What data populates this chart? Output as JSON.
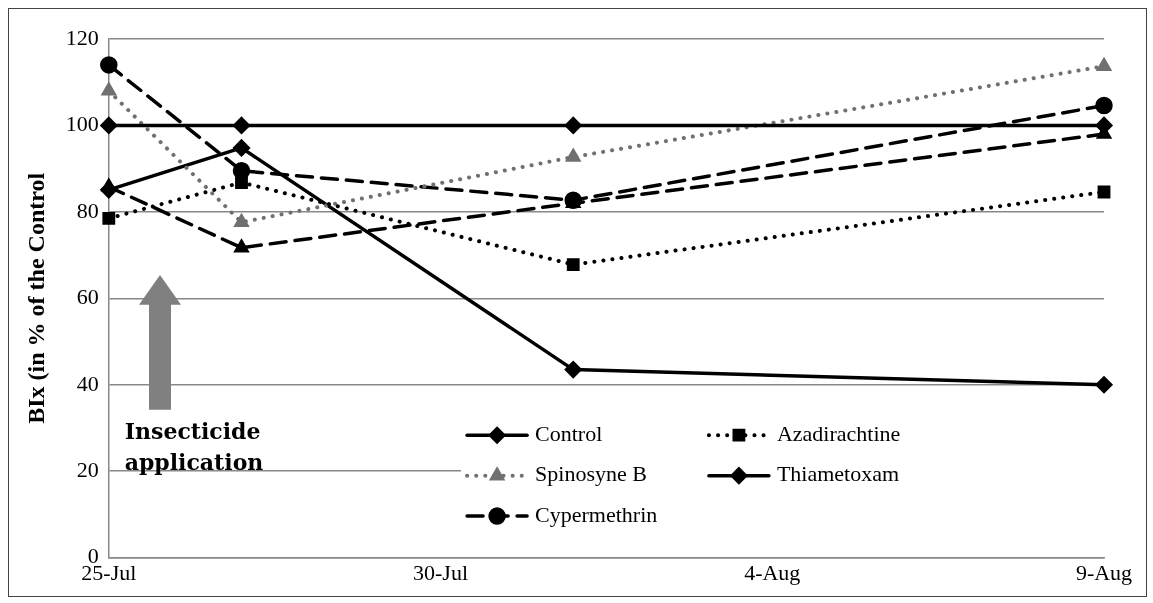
{
  "chart_data": {
    "type": "line",
    "ylabel": "BIx (in % of the Control",
    "x": [
      "--07-25",
      "--07-27",
      "--08-01",
      "--08-09"
    ],
    "xlim": [
      "--07-25",
      "--08-09"
    ],
    "xticks": [
      {
        "value": "--07-25",
        "label": "25-Jul"
      },
      {
        "value": "--07-30",
        "label": "30-Jul"
      },
      {
        "value": "--08-04",
        "label": "4-Aug"
      },
      {
        "value": "--08-09",
        "label": "9-Aug"
      }
    ],
    "ylim": [
      0,
      120
    ],
    "yticks": [
      0,
      20,
      40,
      60,
      80,
      100,
      120
    ],
    "grid": "y",
    "legend": "bottom",
    "annotations": [
      "Insecticide application"
    ],
    "series": [
      {
        "name": "Control",
        "color": "#000000",
        "marker": "diamond",
        "line_style": "solid",
        "values": [
          100,
          100,
          100,
          100
        ]
      },
      {
        "name": "Azadirachtine",
        "color": "#000000",
        "marker": "square",
        "line_style": "dotted",
        "values": [
          78.5,
          86.8,
          67.8,
          84.6
        ]
      },
      {
        "name": "Spinosyne B",
        "color": "#707070",
        "marker": "triangle",
        "line_style": "dotted",
        "values": [
          108,
          77.6,
          92.7,
          113.7
        ]
      },
      {
        "name": "Thiametoxam",
        "color": "#000000",
        "marker": "diamond",
        "line_style": "solid",
        "values": [
          85.1,
          94.8,
          43.5,
          40
        ]
      },
      {
        "color": "#000000",
        "marker": "triangle",
        "line_style": "dashed",
        "values": [
          85.8,
          71.7,
          82,
          98
        ]
      },
      {
        "name": "Cypermethrin",
        "color": "#000000",
        "marker": "circle",
        "line_style": "dashed",
        "values": [
          114,
          89.5,
          82.7,
          104.6
        ]
      }
    ]
  }
}
